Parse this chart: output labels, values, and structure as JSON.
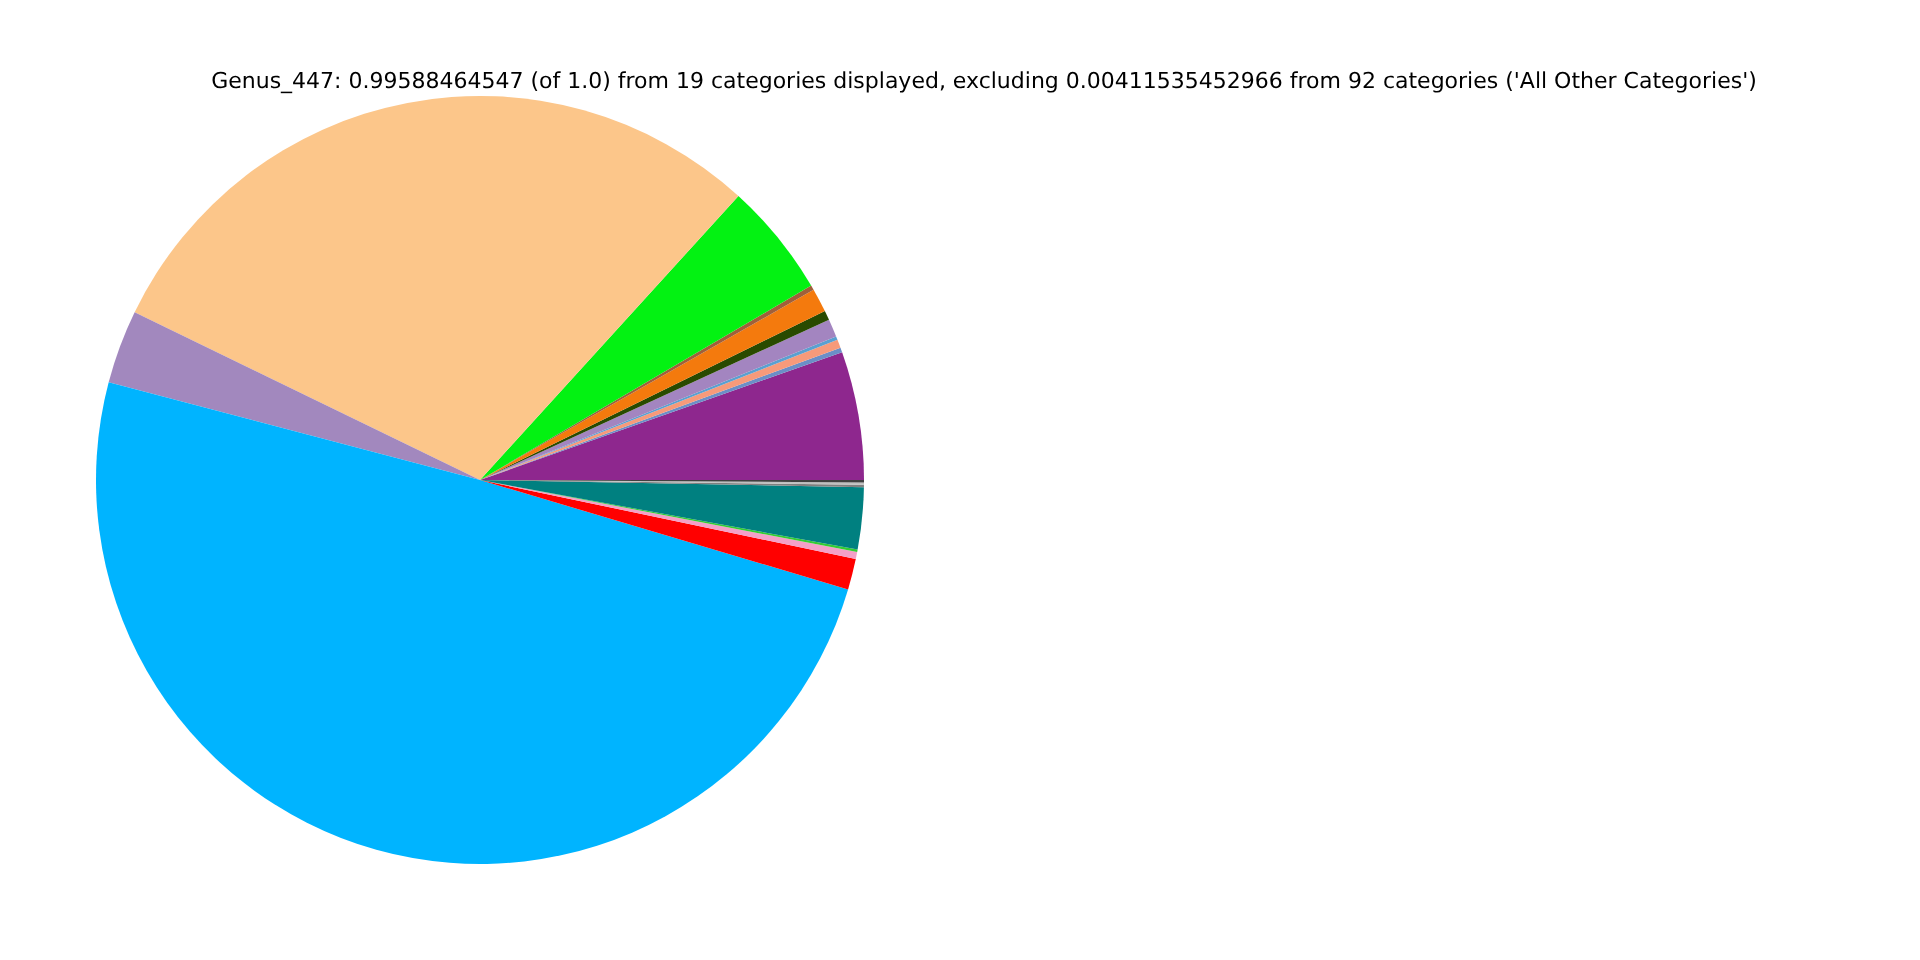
{
  "chart_data": {
    "type": "pie",
    "title": "Genus_447: 0.99588464547 (of 1.0) from 19 categories displayed, excluding 0.00411535452966 from 92 categories ('All Other Categories')",
    "categories": [
      null,
      null,
      null,
      null,
      null,
      null,
      null,
      null,
      null,
      null,
      null,
      null,
      null,
      null,
      null,
      null,
      null,
      null,
      null
    ],
    "values": [
      5.4,
      0.2,
      0.35,
      0.15,
      0.75,
      0.4,
      1.0,
      0.2,
      4.8,
      29.55,
      3.1,
      49.5,
      1.3,
      0.3,
      0.1,
      2.6,
      0.1,
      0.1,
      0.1
    ],
    "colors": [
      "#8e278e",
      "#6b8fc7",
      "#f79a7a",
      "#5aa0d0",
      "#a385c0",
      "#294a00",
      "#f47a0d",
      "#a0603a",
      "#03f212",
      "#fcc68a",
      "#a288be",
      "#00b4ff",
      "#ff0000",
      "#f4a0c8",
      "#33cc33",
      "#008080",
      "#808080",
      "#c0c0c0",
      "#404040"
    ],
    "legend": false
  }
}
